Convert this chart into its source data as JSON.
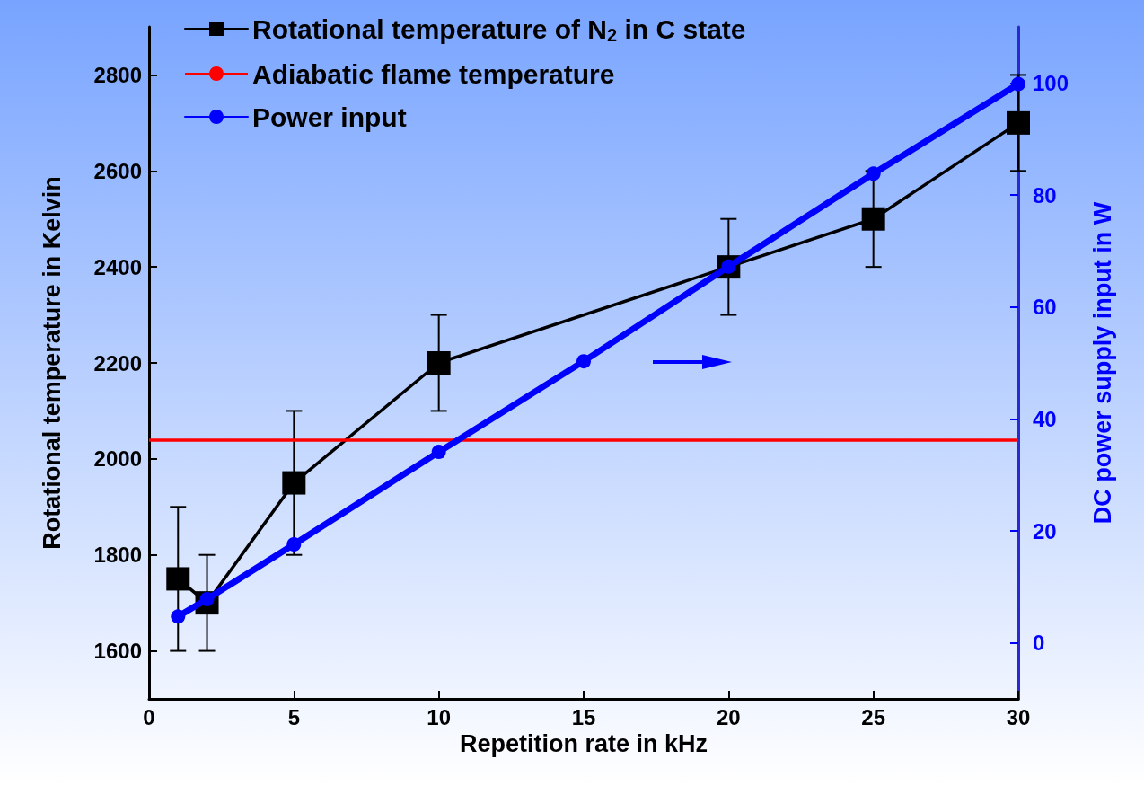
{
  "chart_data": {
    "type": "line",
    "xlabel": "Repetition rate in kHz",
    "ylabel": "Rotational temperature in Kelvin",
    "y2label": "DC power supply input in W",
    "x": [
      1,
      2,
      5,
      10,
      15,
      20,
      25,
      30
    ],
    "xlim": [
      0,
      30
    ],
    "xticks": [
      0,
      5,
      10,
      15,
      20,
      25,
      30
    ],
    "ylim": [
      1500,
      2900
    ],
    "yticks": [
      1600,
      1800,
      2000,
      2200,
      2400,
      2600,
      2800
    ],
    "y2lim": [
      -10,
      110
    ],
    "y2ticks": [
      0,
      20,
      40,
      60,
      80,
      100
    ],
    "series": [
      {
        "name": "Rotational temperature of N$_{2}$ in C state",
        "color": "#000000",
        "marker": "square",
        "x": [
          1,
          2,
          5,
          10,
          20,
          25,
          30
        ],
        "values": [
          1750,
          1700,
          1950,
          2200,
          2400,
          2500,
          2700
        ],
        "errors": [
          150,
          100,
          150,
          100,
          100,
          100,
          100
        ]
      },
      {
        "name": "Power input",
        "color": "#0000ff",
        "marker": "circle",
        "axis": "y2",
        "values": [
          4.7,
          7.8,
          17.6,
          34.1,
          50.3,
          67.2,
          83.8,
          99.8
        ]
      }
    ],
    "ref_lines": [
      {
        "axis": "y",
        "value": 2040,
        "label": "Adiabatic flame temperature",
        "color": "#ff0000"
      }
    ],
    "grid": false,
    "legend": "top left"
  }
}
